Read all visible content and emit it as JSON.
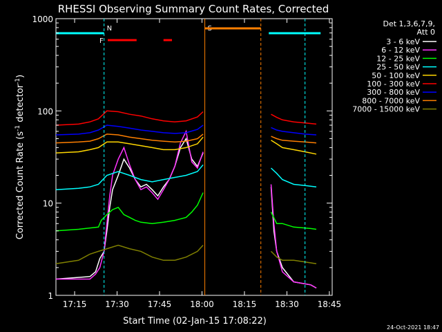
{
  "chart_data": {
    "type": "line",
    "title": "RHESSI Observing Summary Count Rates, Corrected",
    "xlabel": "Start Time (02-Jan-15 17:08:22)",
    "ylabel": "Corrected Count Rate (s⁻¹ detector⁻¹)",
    "ylabel_parts": {
      "main": "Corrected Count Rate (s",
      "exp1": "-1",
      "mid": " detector",
      "exp2": "-1",
      "end": ")"
    },
    "yscale": "log",
    "ylim": [
      1,
      1000
    ],
    "xlim_minutes": [
      0,
      97.6
    ],
    "x_ticks": [
      {
        "label": "17:15",
        "min": 6.6
      },
      {
        "label": "17:30",
        "min": 21.6
      },
      {
        "label": "17:45",
        "min": 36.6
      },
      {
        "label": "18:00",
        "min": 51.6
      },
      {
        "label": "18:15",
        "min": 66.6
      },
      {
        "label": "18:30",
        "min": 81.6
      },
      {
        "label": "18:45",
        "min": 96.6
      }
    ],
    "y_ticks": [
      {
        "label": "1",
        "value": 1
      },
      {
        "label": "10",
        "value": 10
      },
      {
        "label": "100",
        "value": 100
      },
      {
        "label": "1000",
        "value": 1000
      }
    ],
    "legend": {
      "header": [
        "Det 1,3,6,7,9,",
        "Att 0"
      ],
      "placement": "right"
    },
    "series": [
      {
        "name": "3 - 6 keV",
        "color": "#ffffff",
        "points": [
          [
            0,
            1.5
          ],
          [
            12,
            1.6
          ],
          [
            14,
            1.8
          ],
          [
            15.5,
            2.5
          ],
          [
            17,
            3.0
          ],
          [
            18,
            5
          ],
          [
            19,
            9
          ],
          [
            20,
            14
          ],
          [
            22,
            20
          ],
          [
            24,
            30
          ],
          [
            26,
            24
          ],
          [
            28,
            18
          ],
          [
            30,
            15
          ],
          [
            32,
            16
          ],
          [
            34,
            14
          ],
          [
            36,
            12
          ],
          [
            38,
            15
          ],
          [
            40,
            18
          ],
          [
            42,
            25
          ],
          [
            44,
            40
          ],
          [
            46,
            50
          ],
          [
            48,
            30
          ],
          [
            50,
            25
          ],
          [
            52,
            35
          ],
          [
            74,
            2.0
          ],
          [
            75,
            50
          ],
          [
            76,
            15
          ],
          [
            77,
            5
          ],
          [
            78,
            3
          ],
          [
            80,
            2
          ],
          [
            84,
            1.4
          ],
          [
            90,
            1.3
          ],
          [
            92,
            1.2
          ]
        ]
      },
      {
        "name": "6 - 12 keV",
        "color": "#ff33ff",
        "points": [
          [
            0,
            1.5
          ],
          [
            12,
            1.5
          ],
          [
            14,
            1.7
          ],
          [
            15.5,
            2.0
          ],
          [
            17,
            3
          ],
          [
            18,
            6
          ],
          [
            19,
            12
          ],
          [
            20,
            20
          ],
          [
            22,
            30
          ],
          [
            24,
            40
          ],
          [
            26,
            26
          ],
          [
            28,
            18
          ],
          [
            30,
            14
          ],
          [
            32,
            15
          ],
          [
            34,
            13
          ],
          [
            36,
            11
          ],
          [
            38,
            14
          ],
          [
            40,
            18
          ],
          [
            42,
            25
          ],
          [
            44,
            45
          ],
          [
            46,
            60
          ],
          [
            48,
            28
          ],
          [
            50,
            24
          ],
          [
            52,
            36
          ],
          [
            74,
            1.8
          ],
          [
            75,
            60
          ],
          [
            76,
            16
          ],
          [
            77,
            6
          ],
          [
            78,
            3
          ],
          [
            80,
            1.8
          ],
          [
            84,
            1.4
          ],
          [
            90,
            1.3
          ],
          [
            92,
            1.2
          ]
        ]
      },
      {
        "name": "12 - 25 keV",
        "color": "#00ff00",
        "points": [
          [
            0,
            5.0
          ],
          [
            8,
            5.2
          ],
          [
            15,
            5.5
          ],
          [
            16,
            6.5
          ],
          [
            18,
            7.5
          ],
          [
            20,
            8.5
          ],
          [
            22,
            9
          ],
          [
            24,
            7.5
          ],
          [
            26,
            7
          ],
          [
            28,
            6.5
          ],
          [
            30,
            6.2
          ],
          [
            34,
            6.0
          ],
          [
            38,
            6.2
          ],
          [
            42,
            6.5
          ],
          [
            46,
            7
          ],
          [
            48,
            8
          ],
          [
            50,
            9.5
          ],
          [
            52,
            13
          ],
          [
            74,
            6.5
          ],
          [
            75,
            10
          ],
          [
            76,
            8
          ],
          [
            78,
            6
          ],
          [
            80,
            6
          ],
          [
            84,
            5.5
          ],
          [
            90,
            5.3
          ],
          [
            92,
            5.2
          ]
        ]
      },
      {
        "name": "25 - 50 keV",
        "color": "#00ffff",
        "points": [
          [
            0,
            14
          ],
          [
            8,
            14.5
          ],
          [
            12,
            15
          ],
          [
            15,
            16
          ],
          [
            18,
            20
          ],
          [
            22,
            22
          ],
          [
            26,
            20
          ],
          [
            30,
            18
          ],
          [
            34,
            17
          ],
          [
            38,
            18
          ],
          [
            42,
            19
          ],
          [
            46,
            20
          ],
          [
            50,
            22
          ],
          [
            52,
            26
          ],
          [
            74,
            19
          ],
          [
            76,
            24
          ],
          [
            78,
            21
          ],
          [
            80,
            18
          ],
          [
            84,
            16
          ],
          [
            88,
            15.5
          ],
          [
            92,
            15
          ]
        ]
      },
      {
        "name": "50 - 100 keV",
        "color": "#ffd700",
        "points": [
          [
            0,
            35
          ],
          [
            8,
            36
          ],
          [
            12,
            38
          ],
          [
            15,
            40
          ],
          [
            18,
            46
          ],
          [
            22,
            46
          ],
          [
            26,
            44
          ],
          [
            30,
            42
          ],
          [
            34,
            40
          ],
          [
            38,
            38
          ],
          [
            42,
            38
          ],
          [
            46,
            40
          ],
          [
            50,
            44
          ],
          [
            52,
            52
          ],
          [
            74,
            45
          ],
          [
            76,
            48
          ],
          [
            78,
            44
          ],
          [
            80,
            40
          ],
          [
            84,
            38
          ],
          [
            88,
            36
          ],
          [
            92,
            34
          ]
        ]
      },
      {
        "name": "100 - 300 keV",
        "color": "#ff0000",
        "points": [
          [
            0,
            70
          ],
          [
            8,
            72
          ],
          [
            12,
            76
          ],
          [
            15,
            82
          ],
          [
            18,
            100
          ],
          [
            22,
            98
          ],
          [
            26,
            92
          ],
          [
            30,
            88
          ],
          [
            34,
            82
          ],
          [
            38,
            78
          ],
          [
            42,
            76
          ],
          [
            46,
            78
          ],
          [
            50,
            86
          ],
          [
            52,
            98
          ],
          [
            74,
            95
          ],
          [
            76,
            92
          ],
          [
            78,
            85
          ],
          [
            80,
            80
          ],
          [
            84,
            76
          ],
          [
            88,
            74
          ],
          [
            92,
            72
          ]
        ]
      },
      {
        "name": "300 - 800 keV",
        "color": "#0000ff",
        "points": [
          [
            0,
            55
          ],
          [
            8,
            56
          ],
          [
            12,
            58
          ],
          [
            15,
            62
          ],
          [
            18,
            70
          ],
          [
            22,
            68
          ],
          [
            26,
            65
          ],
          [
            30,
            62
          ],
          [
            34,
            60
          ],
          [
            38,
            58
          ],
          [
            42,
            57
          ],
          [
            46,
            58
          ],
          [
            50,
            63
          ],
          [
            52,
            70
          ],
          [
            74,
            68
          ],
          [
            76,
            66
          ],
          [
            78,
            62
          ],
          [
            80,
            60
          ],
          [
            84,
            58
          ],
          [
            88,
            56
          ],
          [
            92,
            55
          ]
        ]
      },
      {
        "name": "800 - 7000 keV",
        "color": "#ff7f00",
        "points": [
          [
            0,
            45
          ],
          [
            8,
            46
          ],
          [
            12,
            47
          ],
          [
            15,
            50
          ],
          [
            18,
            56
          ],
          [
            22,
            55
          ],
          [
            26,
            52
          ],
          [
            30,
            50
          ],
          [
            34,
            48
          ],
          [
            38,
            47
          ],
          [
            42,
            46
          ],
          [
            46,
            47
          ],
          [
            50,
            50
          ],
          [
            52,
            56
          ],
          [
            74,
            55
          ],
          [
            76,
            53
          ],
          [
            78,
            50
          ],
          [
            80,
            48
          ],
          [
            84,
            47
          ],
          [
            88,
            46
          ],
          [
            92,
            45
          ]
        ]
      },
      {
        "name": "7000 - 15000 keV",
        "color": "#808000",
        "points": [
          [
            0,
            2.2
          ],
          [
            8,
            2.4
          ],
          [
            12,
            2.8
          ],
          [
            15,
            3.0
          ],
          [
            18,
            3.2
          ],
          [
            22,
            3.5
          ],
          [
            26,
            3.2
          ],
          [
            30,
            3.0
          ],
          [
            34,
            2.6
          ],
          [
            38,
            2.4
          ],
          [
            42,
            2.4
          ],
          [
            46,
            2.6
          ],
          [
            50,
            3.0
          ],
          [
            52,
            3.5
          ],
          [
            74,
            2.8
          ],
          [
            76,
            3.0
          ],
          [
            78,
            2.6
          ],
          [
            80,
            2.4
          ],
          [
            84,
            2.4
          ],
          [
            88,
            2.3
          ],
          [
            92,
            2.2
          ]
        ]
      }
    ],
    "gaps": [
      [
        52.6,
        75.2
      ]
    ],
    "markers": [
      {
        "label": "N",
        "kind": "night",
        "color": "#00ffff",
        "start": 17.0,
        "end": 88.0
      },
      {
        "label": "S",
        "kind": "saa",
        "color": "#ff7f00",
        "start": 52.6,
        "end": 72.4
      }
    ],
    "flare_bars": [
      {
        "label": "F",
        "color": "#ff0000",
        "segments": [
          [
            18.3,
            28.5
          ],
          [
            38.0,
            41.0
          ]
        ]
      }
    ],
    "night_bars": [
      [
        0,
        17.0
      ],
      [
        75.2,
        93.5
      ]
    ],
    "saa_bar": [
      52.6,
      72.4
    ],
    "timestamp": "24-Oct-2021 18:47"
  }
}
